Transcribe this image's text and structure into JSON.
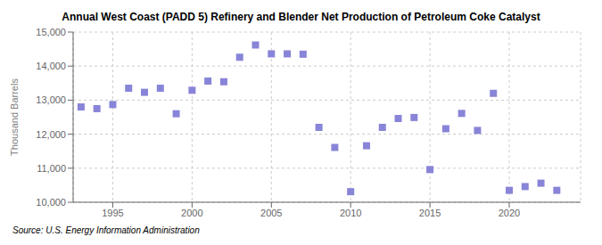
{
  "chart_data": {
    "type": "scatter",
    "title": "Annual West Coast (PADD 5) Refinery and Blender Net Production of Petroleum Coke Catalyst",
    "ylabel": "Thousand Barrels",
    "annotations": [
      "Source: U.S. Energy Information Administration"
    ],
    "x": [
      1993,
      1994,
      1995,
      1996,
      1997,
      1998,
      1999,
      2000,
      2001,
      2002,
      2003,
      2004,
      2005,
      2006,
      2007,
      2008,
      2009,
      2010,
      2011,
      2012,
      2013,
      2014,
      2015,
      2016,
      2017,
      2018,
      2019,
      2020,
      2021,
      2022,
      2023
    ],
    "values": [
      12800,
      12750,
      12870,
      13350,
      13230,
      13350,
      12600,
      13290,
      13560,
      13540,
      14260,
      14620,
      14360,
      14360,
      14350,
      12200,
      11610,
      10310,
      11660,
      12200,
      12460,
      12490,
      10960,
      12160,
      12610,
      12110,
      13200,
      10350,
      10460,
      10560,
      10350
    ],
    "xlim": [
      1992.5,
      2024.5
    ],
    "xticks": [
      1995,
      2000,
      2005,
      2010,
      2015,
      2020
    ],
    "ylim": [
      10000,
      15000
    ],
    "yticks": [
      {
        "value": 10000,
        "label": "10,000"
      },
      {
        "value": 11000,
        "label": "11,000"
      },
      {
        "value": 12000,
        "label": "12,000"
      },
      {
        "value": 13000,
        "label": "13,000"
      },
      {
        "value": 14000,
        "label": "14,000"
      },
      {
        "value": 15000,
        "label": "15,000"
      }
    ],
    "grid": true,
    "marker": "square"
  }
}
